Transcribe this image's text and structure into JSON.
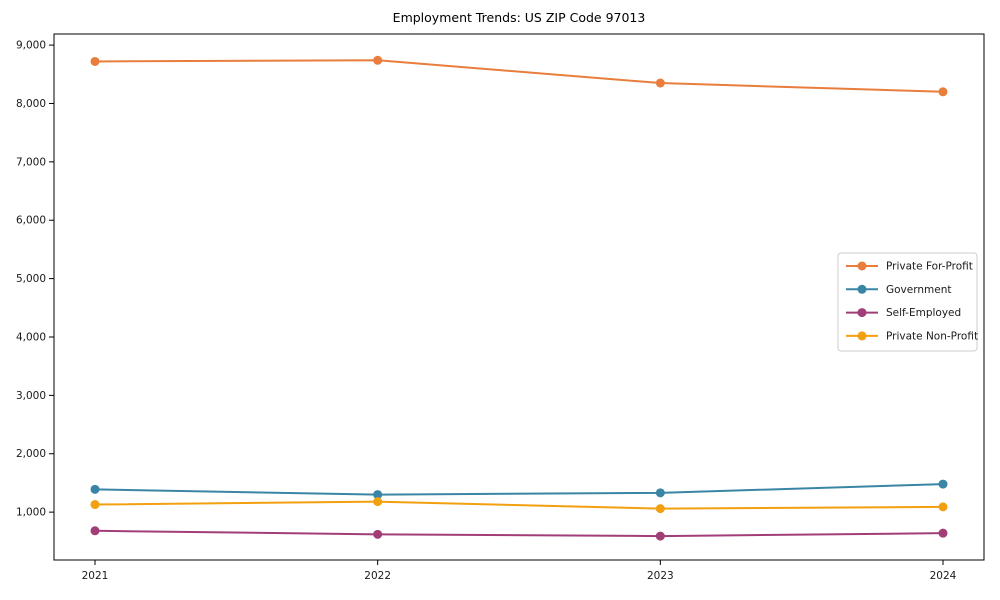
{
  "chart_data": {
    "type": "line",
    "title": "Employment Trends: US ZIP Code 97013",
    "x": [
      2021,
      2022,
      2023,
      2024
    ],
    "x_tick_labels": [
      "2021",
      "2022",
      "2023",
      "2024"
    ],
    "series": [
      {
        "name": "Private For-Profit",
        "color": "#e87d3c",
        "values": [
          8720,
          8740,
          8350,
          8200
        ]
      },
      {
        "name": "Government",
        "color": "#3a85a5",
        "values": [
          1390,
          1300,
          1330,
          1480
        ]
      },
      {
        "name": "Self-Employed",
        "color": "#a23e77",
        "values": [
          680,
          620,
          590,
          640
        ]
      },
      {
        "name": "Private Non-Profit",
        "color": "#f2a00f",
        "values": [
          1130,
          1180,
          1060,
          1090
        ]
      }
    ],
    "yticks": [
      1000,
      2000,
      3000,
      4000,
      5000,
      6000,
      7000,
      8000,
      9000
    ],
    "ytick_labels": [
      "1,000",
      "2,000",
      "3,000",
      "4,000",
      "5,000",
      "6,000",
      "7,000",
      "8,000",
      "9,000"
    ],
    "ylim": [
      180,
      9190
    ],
    "xlabel": "",
    "ylabel": "",
    "grid": false,
    "legend": {
      "position": "middle-right",
      "labels": [
        "Private For-Profit",
        "Government",
        "Self-Employed",
        "Private Non-Profit"
      ]
    },
    "style": {
      "spine_color": "#000000",
      "background": "#ffffff",
      "legend_border": "#cccccc",
      "marker": "circle",
      "line_width": 2,
      "marker_radius": 4.5
    }
  }
}
